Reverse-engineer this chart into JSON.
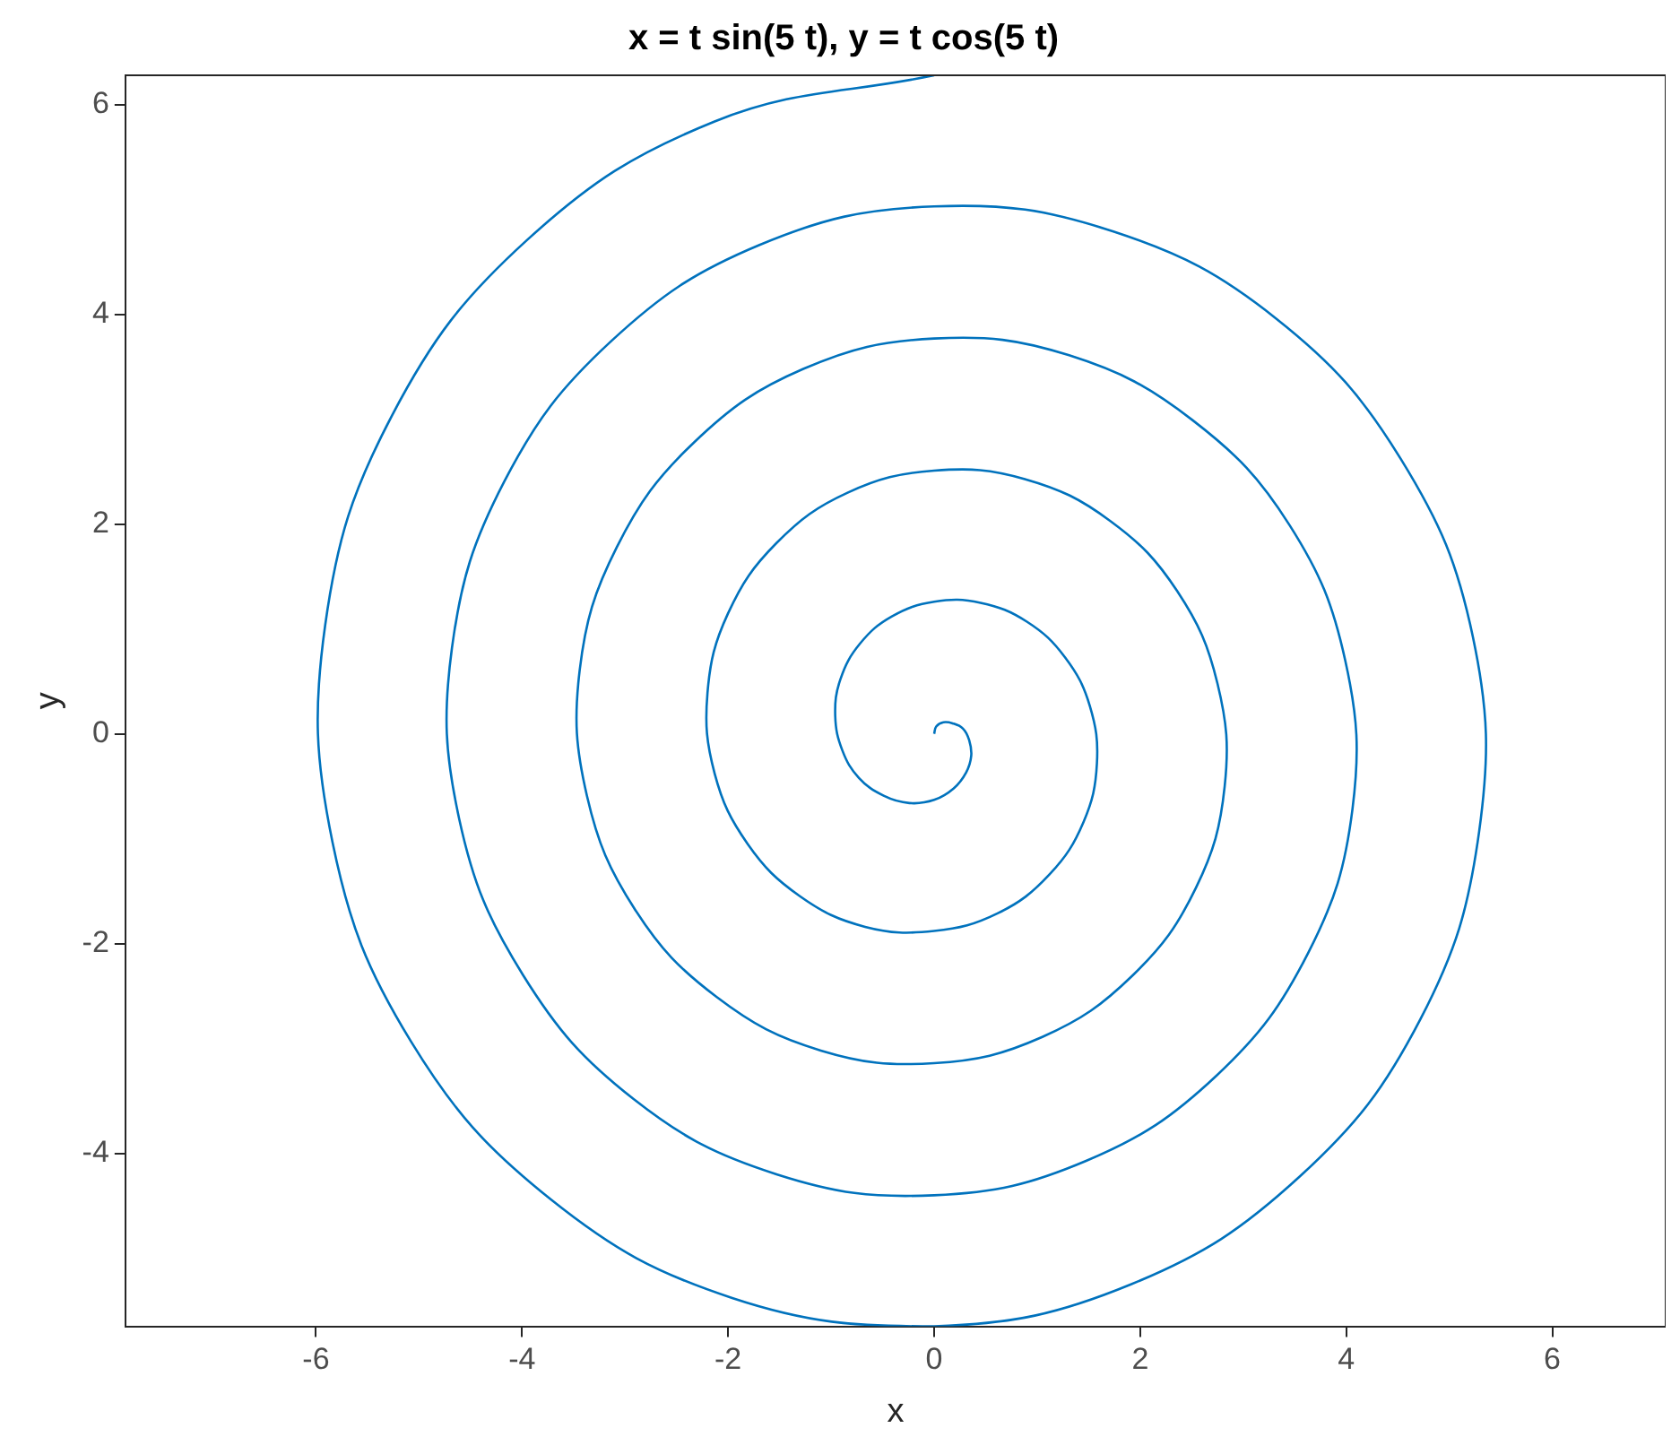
{
  "chart_data": {
    "type": "line",
    "title": "x = t sin(5 t), y = t cos(5 t)",
    "xlabel": "x",
    "ylabel": "y",
    "xlim": [
      -7.85,
      7.1
    ],
    "ylim": [
      -5.65,
      6.28
    ],
    "xticks": [
      -6,
      -4,
      -2,
      0,
      2,
      4,
      6
    ],
    "yticks": [
      -4,
      -2,
      0,
      2,
      4,
      6
    ],
    "grid": false,
    "legend": false,
    "line_style": "solid",
    "series": [
      {
        "color": "#0072bd",
        "x": [
          0,
          0.02,
          0.09,
          0.18,
          0.28,
          0.34,
          0.36,
          0.31,
          0.19,
          0,
          -0.24,
          -0.49,
          -0.73,
          -0.89,
          -0.96,
          -0.91,
          -0.72,
          -0.41,
          0,
          0.45,
          0.9,
          1.27,
          1.51,
          1.58,
          1.45,
          1.12,
          0.62,
          0,
          -0.67,
          -1.3,
          -1.81,
          -2.13,
          -2.2,
          -2.0,
          -1.53,
          -0.84,
          0,
          0.88,
          1.71,
          2.36,
          2.75,
          2.82,
          2.54,
          1.93,
          1.05,
          0,
          -1.1,
          -2.11,
          -2.9,
          -3.37,
          -3.44,
          -3.08,
          -2.33,
          -1.27,
          0,
          1.31,
          2.51,
          3.45,
          3.99,
          4.06,
          3.63,
          2.74,
          1.48,
          0,
          -1.53,
          -2.92,
          -3.99,
          -4.61,
          -4.68,
          -4.17,
          -3.14,
          -1.7,
          0,
          1.74,
          3.32,
          4.53,
          5.23,
          5.29,
          4.72,
          3.55,
          1.91,
          0,
          -1.96,
          -3.72,
          -5.08,
          -5.84,
          -5.91,
          -5.26,
          -3.95,
          -2.13,
          0
        ],
        "values": [
          0,
          0.07,
          0.11,
          0.1,
          0.05,
          -0.06,
          -0.21,
          -0.37,
          -0.52,
          -0.63,
          -0.66,
          -0.59,
          -0.42,
          -0.16,
          0.17,
          0.52,
          0.86,
          1.12,
          1.26,
          1.25,
          1.07,
          0.73,
          0.27,
          -0.28,
          -0.84,
          -1.34,
          -1.71,
          -1.88,
          -1.84,
          -1.55,
          -1.05,
          -0.38,
          0.39,
          1.15,
          1.82,
          2.3,
          2.51,
          2.43,
          2.03,
          1.36,
          0.48,
          -0.5,
          -1.47,
          -2.3,
          -2.89,
          -3.14,
          -3.02,
          -2.51,
          -1.68,
          -0.59,
          0.61,
          1.78,
          2.78,
          3.48,
          3.77,
          3.61,
          2.99,
          1.99,
          0.7,
          -0.72,
          -2.09,
          -3.26,
          -4.07,
          -4.4,
          -4.2,
          -3.48,
          -2.3,
          -0.81,
          0.82,
          2.41,
          3.74,
          4.66,
          5.03,
          4.79,
          3.96,
          2.62,
          0.92,
          -0.93,
          -2.72,
          -4.22,
          -5.25,
          -5.65,
          -5.38,
          -4.44,
          -2.93,
          -1.03,
          1.04,
          3.04,
          4.71,
          5.84,
          6.28
        ]
      }
    ]
  }
}
